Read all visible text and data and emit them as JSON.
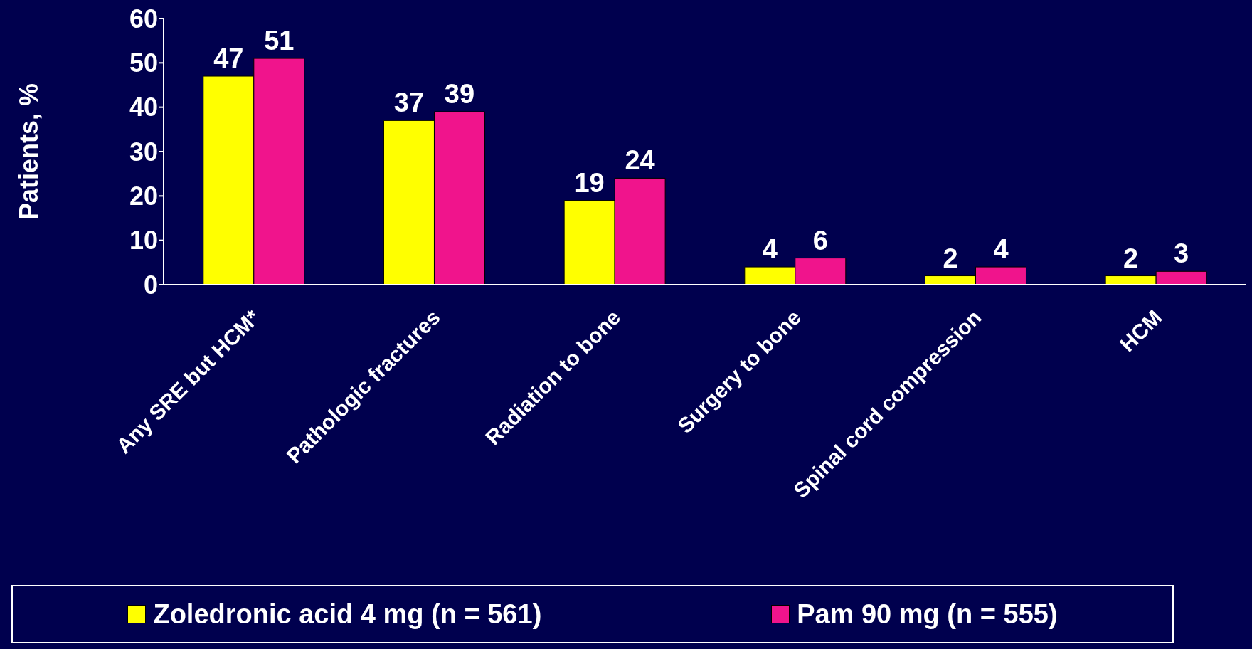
{
  "chart_data": {
    "type": "bar",
    "ylabel": "Patients, %",
    "categories": [
      "Any SRE but HCM*",
      "Pathologic fractures",
      "Radiation to bone",
      "Surgery to bone",
      "Spinal cord compression",
      "HCM"
    ],
    "series": [
      {
        "name": "Zoledronic acid 4 mg (n = 561)",
        "color": "#ffff00",
        "values": [
          47,
          37,
          19,
          4,
          2,
          2
        ]
      },
      {
        "name": "Pam 90 mg (n = 555)",
        "color": "#f0148c",
        "values": [
          51,
          39,
          24,
          6,
          4,
          3
        ]
      }
    ],
    "ylim": [
      0,
      60
    ],
    "yticks": [
      0,
      10,
      20,
      30,
      40,
      50,
      60
    ],
    "grid": false,
    "legend": "bottom",
    "data_labels": true
  }
}
